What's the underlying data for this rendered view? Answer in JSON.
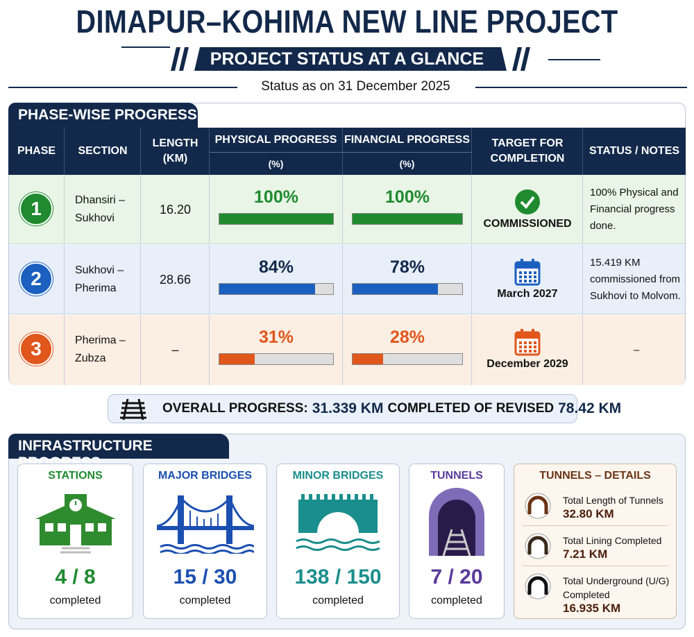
{
  "header": {
    "title": "DIMAPUR–KOHIMA NEW LINE PROJECT",
    "subtitle": "PROJECT STATUS AT A GLANCE",
    "status_date": "Status as on 31 December 2025"
  },
  "phase_progress": {
    "title": "PHASE-WISE PROGRESS",
    "columns": {
      "phase": "PHASE",
      "section": "SECTION",
      "length": "LENGTH (KM)",
      "physical": "PHYSICAL PROGRESS",
      "physical_unit": "(%)",
      "financial": "FINANCIAL PROGRESS",
      "financial_unit": "(%)",
      "target": "TARGET FOR COMPLETION",
      "status": "STATUS / NOTES"
    },
    "rows": [
      {
        "phase": "1",
        "section": "Dhansiri – Sukhovi",
        "length": "16.20",
        "physical": {
          "value": 100,
          "label": "100%"
        },
        "financial": {
          "value": 100,
          "label": "100%"
        },
        "target": "COMMISSIONED",
        "notes": "100% Physical and Financial progress done."
      },
      {
        "phase": "2",
        "section": "Sukhovi – Pherima",
        "length": "28.66",
        "physical": {
          "value": 84,
          "label": "84%"
        },
        "financial": {
          "value": 78,
          "label": "78%"
        },
        "target": "March 2027",
        "notes": "15.419 KM commissioned from Sukhovi to Molvom."
      },
      {
        "phase": "3",
        "section": "Pherima – Zubza",
        "length": "–",
        "physical": {
          "value": 31,
          "label": "31%"
        },
        "financial": {
          "value": 28,
          "label": "28%"
        },
        "target": "December 2029",
        "notes": "–"
      }
    ]
  },
  "overall": {
    "label": "OVERALL PROGRESS:",
    "completed": "31.339 KM",
    "middle": "COMPLETED OF REVISED",
    "total": "78.42 KM"
  },
  "infrastructure": {
    "title": "INFRASTRUCTURE PROGRESS",
    "cards": [
      {
        "title": "STATIONS",
        "count": "4 / 8",
        "caption": "completed"
      },
      {
        "title": "MAJOR BRIDGES",
        "count": "15 / 30",
        "caption": "completed"
      },
      {
        "title": "MINOR BRIDGES",
        "count": "138 / 150",
        "caption": "completed"
      },
      {
        "title": "TUNNELS",
        "count": "7 / 20",
        "caption": "completed"
      }
    ],
    "tunnel_details": {
      "title": "TUNNELS – DETAILS",
      "items": [
        {
          "label": "Total Length of Tunnels",
          "value": "32.80 KM"
        },
        {
          "label": "Total Lining Completed",
          "value": "7.21 KM"
        },
        {
          "label": "Total Underground (U/G) Completed",
          "value": "16.935 KM"
        }
      ]
    }
  }
}
